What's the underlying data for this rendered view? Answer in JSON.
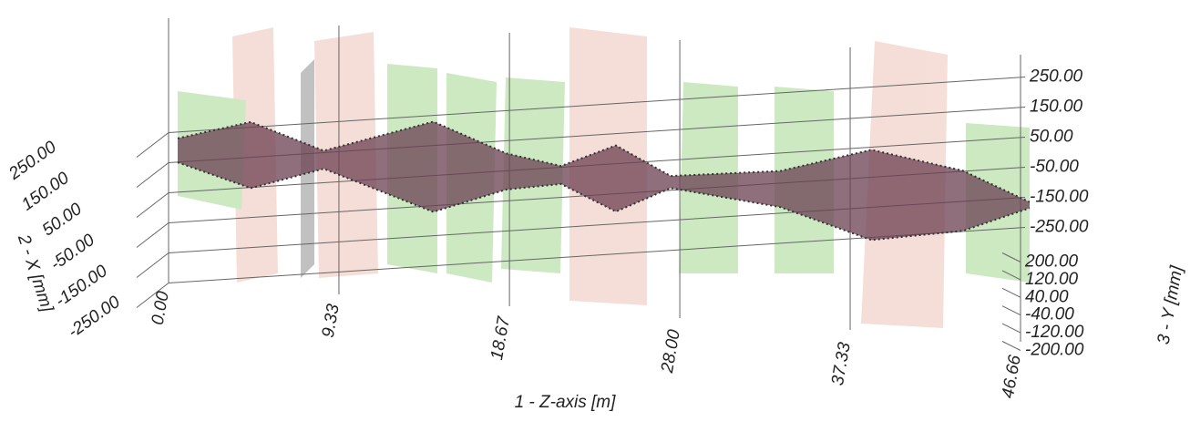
{
  "chart_data": {
    "type": "envelope3d",
    "xlabel": "1 - Z-axis [m]",
    "ylabel": "2 - X [mm]",
    "zlabel": "3 - Y [mm]",
    "xlim": [
      0,
      46.66
    ],
    "xticks": [
      {
        "value": 0,
        "label": "0.00"
      },
      {
        "value": 9.33,
        "label": "9.33"
      },
      {
        "value": 18.67,
        "label": "18.67"
      },
      {
        "value": 28,
        "label": "28.00"
      },
      {
        "value": 37.33,
        "label": "37.33"
      },
      {
        "value": 46.66,
        "label": "46.66"
      }
    ],
    "ylim": [
      -250,
      250
    ],
    "yticks": [
      {
        "value": 250,
        "label": "250.00"
      },
      {
        "value": 150,
        "label": "150.00"
      },
      {
        "value": 50,
        "label": "50.00"
      },
      {
        "value": -50,
        "label": "-50.00"
      },
      {
        "value": -150,
        "label": "-150.00"
      },
      {
        "value": -250,
        "label": "-250.00"
      }
    ],
    "zlim": [
      -200,
      200
    ],
    "zticks": [
      {
        "value": 200,
        "label": "200.00"
      },
      {
        "value": 120,
        "label": "120.00"
      },
      {
        "value": 40,
        "label": "40.00"
      },
      {
        "value": -40,
        "label": "-40.00"
      },
      {
        "value": -120,
        "label": "-120.00"
      },
      {
        "value": -200,
        "label": "-200.00"
      }
    ],
    "x": [
      0,
      4,
      8,
      14,
      18,
      21,
      24,
      27,
      33,
      38,
      43,
      46.66
    ],
    "values": [
      40,
      110,
      30,
      150,
      60,
      30,
      110,
      20,
      60,
      150,
      100,
      10
    ],
    "color": "#6b3f52",
    "grid": true
  }
}
